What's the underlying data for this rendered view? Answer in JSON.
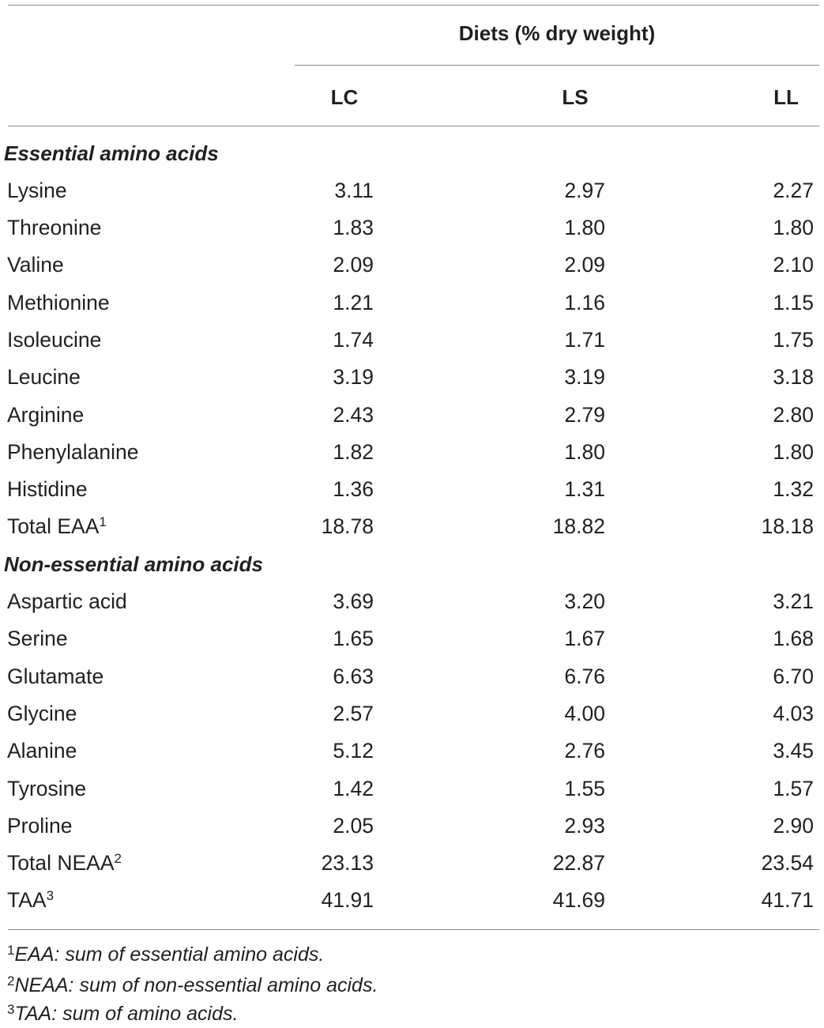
{
  "table": {
    "span_header": "Diets (% dry weight)",
    "columns": [
      "LC",
      "LS",
      "LL"
    ],
    "sections": [
      {
        "title": "Essential amino acids",
        "rows": [
          {
            "label": "Lysine",
            "values": [
              "3.11",
              "2.97",
              "2.27"
            ]
          },
          {
            "label": "Threonine",
            "values": [
              "1.83",
              "1.80",
              "1.80"
            ]
          },
          {
            "label": "Valine",
            "values": [
              "2.09",
              "2.09",
              "2.10"
            ]
          },
          {
            "label": "Methionine",
            "values": [
              "1.21",
              "1.16",
              "1.15"
            ]
          },
          {
            "label": "Isoleucine",
            "values": [
              "1.74",
              "1.71",
              "1.75"
            ]
          },
          {
            "label": "Leucine",
            "values": [
              "3.19",
              "3.19",
              "3.18"
            ]
          },
          {
            "label": "Arginine",
            "values": [
              "2.43",
              "2.79",
              "2.80"
            ]
          },
          {
            "label": "Phenylalanine",
            "values": [
              "1.82",
              "1.80",
              "1.80"
            ]
          },
          {
            "label": "Histidine",
            "values": [
              "1.36",
              "1.31",
              "1.32"
            ]
          },
          {
            "label": "Total EAA",
            "sup": "1",
            "values": [
              "18.78",
              "18.82",
              "18.18"
            ]
          }
        ]
      },
      {
        "title": "Non-essential amino acids",
        "rows": [
          {
            "label": "Aspartic acid",
            "values": [
              "3.69",
              "3.20",
              "3.21"
            ]
          },
          {
            "label": "Serine",
            "values": [
              "1.65",
              "1.67",
              "1.68"
            ]
          },
          {
            "label": "Glutamate",
            "values": [
              "6.63",
              "6.76",
              "6.70"
            ]
          },
          {
            "label": "Glycine",
            "values": [
              "2.57",
              "4.00",
              "4.03"
            ]
          },
          {
            "label": "Alanine",
            "values": [
              "5.12",
              "2.76",
              "3.45"
            ]
          },
          {
            "label": "Tyrosine",
            "values": [
              "1.42",
              "1.55",
              "1.57"
            ]
          },
          {
            "label": "Proline",
            "values": [
              "2.05",
              "2.93",
              "2.90"
            ]
          },
          {
            "label": "Total NEAA",
            "sup": "2",
            "values": [
              "23.13",
              "22.87",
              "23.54"
            ]
          },
          {
            "label": "TAA",
            "sup": "3",
            "values": [
              "41.91",
              "41.69",
              "41.71"
            ]
          }
        ]
      }
    ]
  },
  "footnotes": [
    {
      "mark": "1",
      "text": "EAA: sum of essential amino acids."
    },
    {
      "mark": "2",
      "text": "NEAA: sum of non-essential amino acids."
    },
    {
      "mark": "3",
      "text": "TAA: sum of amino acids."
    }
  ],
  "colors": {
    "text": "#231f20",
    "rule": "#8a8a8a"
  }
}
